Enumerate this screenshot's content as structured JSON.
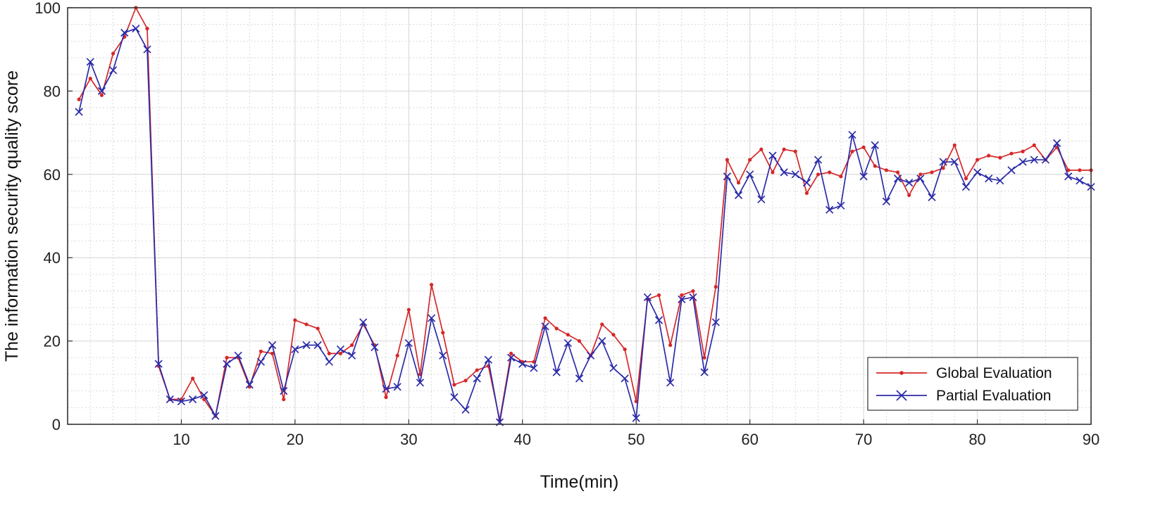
{
  "chart_data": {
    "type": "line",
    "title": "",
    "xlabel": "Time(min)",
    "ylabel": "The information security quality score",
    "xlim": [
      0,
      90
    ],
    "ylim": [
      0,
      100
    ],
    "xticks": [
      10,
      20,
      30,
      40,
      50,
      60,
      70,
      80,
      90
    ],
    "yticks": [
      0,
      20,
      40,
      60,
      80,
      100
    ],
    "grid": true,
    "legend_position": "bottom-right",
    "x": [
      1,
      2,
      3,
      4,
      5,
      6,
      7,
      8,
      9,
      10,
      11,
      12,
      13,
      14,
      15,
      16,
      17,
      18,
      19,
      20,
      21,
      22,
      23,
      24,
      25,
      26,
      27,
      28,
      29,
      30,
      31,
      32,
      33,
      34,
      35,
      36,
      37,
      38,
      39,
      40,
      41,
      42,
      43,
      44,
      45,
      46,
      47,
      48,
      49,
      50,
      51,
      52,
      53,
      54,
      55,
      56,
      57,
      58,
      59,
      60,
      61,
      62,
      63,
      64,
      65,
      66,
      67,
      68,
      69,
      70,
      71,
      72,
      73,
      74,
      75,
      76,
      77,
      78,
      79,
      80,
      81,
      82,
      83,
      84,
      85,
      86,
      87,
      88,
      89,
      90
    ],
    "series": [
      {
        "name": "Global Evaluation",
        "color": "#d62728",
        "marker": "dot",
        "values": [
          78,
          83,
          79,
          89,
          93,
          100,
          95,
          14,
          6,
          6,
          11,
          6,
          2,
          16,
          16,
          9,
          17.5,
          17,
          6,
          25,
          24,
          23,
          17,
          17,
          19,
          24,
          19,
          6.5,
          16.5,
          27.5,
          12,
          33.5,
          22,
          9.5,
          10.5,
          13,
          14,
          1,
          17,
          15,
          15,
          25.5,
          23,
          21.5,
          20,
          16.5,
          24,
          21.5,
          18,
          5.5,
          30,
          31,
          19,
          31,
          32,
          16,
          33,
          63.5,
          58,
          63.5,
          66,
          60.5,
          66,
          65.5,
          55.5,
          60,
          60.5,
          59.5,
          65.5,
          66.5,
          62,
          61,
          60.5,
          55,
          60,
          60.5,
          61.5,
          67,
          59,
          63.5,
          64.5,
          64,
          65,
          65.5,
          67,
          63.5,
          66.5,
          61,
          61,
          61
        ]
      },
      {
        "name": "Partial Evaluation",
        "color": "#2b2ba8",
        "marker": "x",
        "values": [
          75,
          87,
          80,
          85,
          94,
          95,
          90,
          14.5,
          6,
          5.5,
          6,
          7,
          2,
          14.5,
          16.5,
          9.5,
          15,
          19,
          8,
          18,
          19,
          19,
          15,
          18,
          16.5,
          24.5,
          18.5,
          8.5,
          9,
          19.5,
          10,
          25.5,
          16.5,
          6.5,
          3.5,
          11,
          15.5,
          0.5,
          16,
          14.5,
          13.5,
          23.5,
          12.5,
          19.5,
          11,
          16.5,
          20,
          13.5,
          11,
          1.5,
          30.5,
          25,
          10,
          30,
          30.5,
          12.5,
          24.5,
          59.5,
          55,
          60,
          54,
          64.5,
          60.5,
          60,
          58,
          63.5,
          51.5,
          52.5,
          69.5,
          59.5,
          67,
          53.5,
          59,
          58,
          59,
          54.5,
          63,
          63,
          57,
          60.5,
          59,
          58.5,
          61,
          63,
          63.5,
          63.5,
          67.5,
          59.5,
          58.5,
          57
        ]
      }
    ]
  }
}
